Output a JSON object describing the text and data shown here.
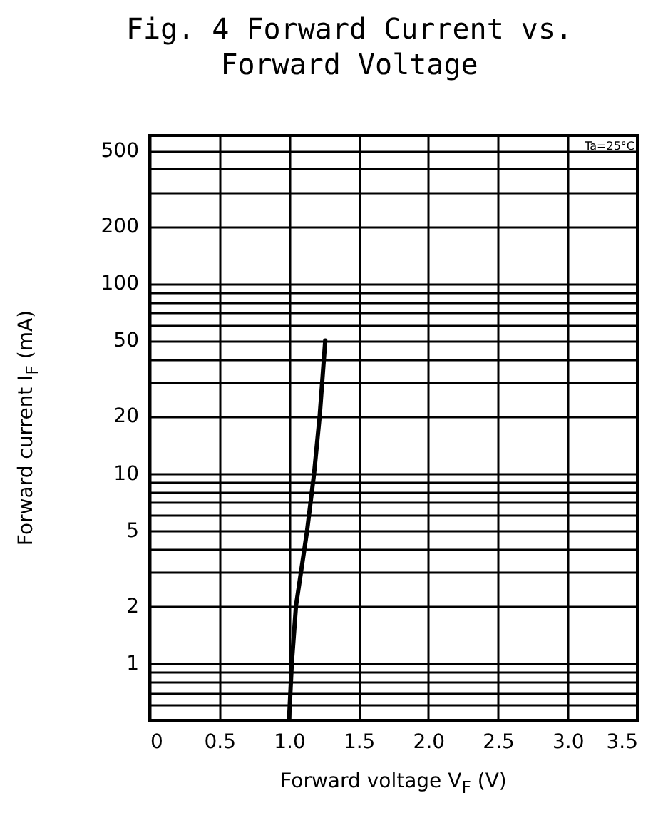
{
  "chart_data": {
    "type": "line",
    "title": "Fig. 4 Forward Current vs. Forward Voltage",
    "xlabel": "Forward voltage V$_{F}$ (V)",
    "ylabel": "Forward current I$_{F}$ (mA)",
    "annotations": [
      "Ta=25°C"
    ],
    "x": [
      1.0,
      1.02,
      1.05,
      1.13,
      1.18,
      1.22,
      1.26
    ],
    "series": [
      {
        "color": "#000000",
        "values": [
          0.5,
          1,
          2,
          5,
          10,
          20,
          50
        ]
      }
    ],
    "xlim": [
      0,
      3.5
    ],
    "xticks": [
      0,
      0.5,
      {
        "value": 1,
        "label": "1.0"
      },
      1.5,
      {
        "value": 2,
        "label": "2.0"
      },
      2.5,
      {
        "value": 3,
        "label": "3.0"
      },
      3.5
    ],
    "ylim": [
      0.5,
      600
    ],
    "yticks": [
      {
        "value": 0.6,
        "label": null
      },
      {
        "value": 0.7,
        "label": null
      },
      {
        "value": 0.8,
        "label": null
      },
      {
        "value": 0.9,
        "label": null
      },
      1,
      2,
      {
        "value": 3,
        "label": null
      },
      {
        "value": 4,
        "label": null
      },
      5,
      {
        "value": 6,
        "label": null
      },
      {
        "value": 7,
        "label": null
      },
      {
        "value": 8,
        "label": null
      },
      {
        "value": 9,
        "label": null
      },
      10,
      20,
      {
        "value": 30,
        "label": null
      },
      {
        "value": 40,
        "label": null
      },
      50,
      {
        "value": 60,
        "label": null
      },
      {
        "value": 70,
        "label": null
      },
      {
        "value": 80,
        "label": null
      },
      {
        "value": 90,
        "label": null
      },
      100,
      200,
      {
        "value": 300,
        "label": null
      },
      {
        "value": 400,
        "label": null
      },
      500
    ],
    "log": "y",
    "grid": true,
    "marker": "none",
    "line_style": "solid"
  }
}
